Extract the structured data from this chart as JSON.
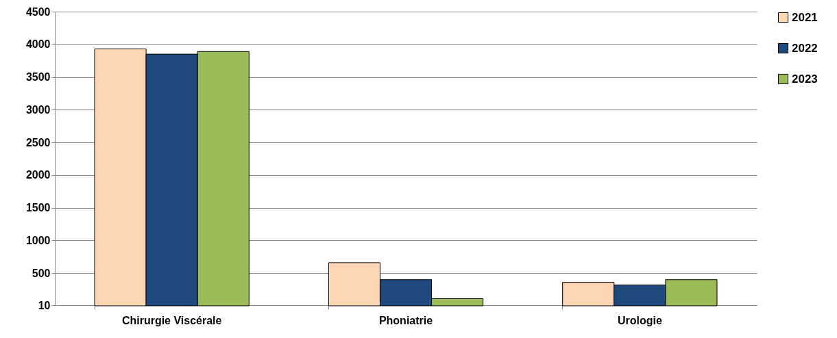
{
  "chart_data": {
    "type": "bar",
    "categories": [
      "Chirurgie Viscérale",
      "Phoniatrie",
      "Urologie"
    ],
    "series": [
      {
        "name": "2021",
        "color": "#fcd5b5",
        "values": [
          3930,
          660,
          360
        ]
      },
      {
        "name": "2022",
        "color": "#1f497d",
        "values": [
          3850,
          400,
          320
        ]
      },
      {
        "name": "2023",
        "color": "#9bbb59",
        "values": [
          3890,
          110,
          400
        ]
      }
    ],
    "ylim": [
      10,
      4500
    ],
    "yticks": [
      10,
      500,
      1000,
      1500,
      2000,
      2500,
      3000,
      3500,
      4000,
      4500
    ],
    "grid": "y",
    "legend": "right"
  }
}
